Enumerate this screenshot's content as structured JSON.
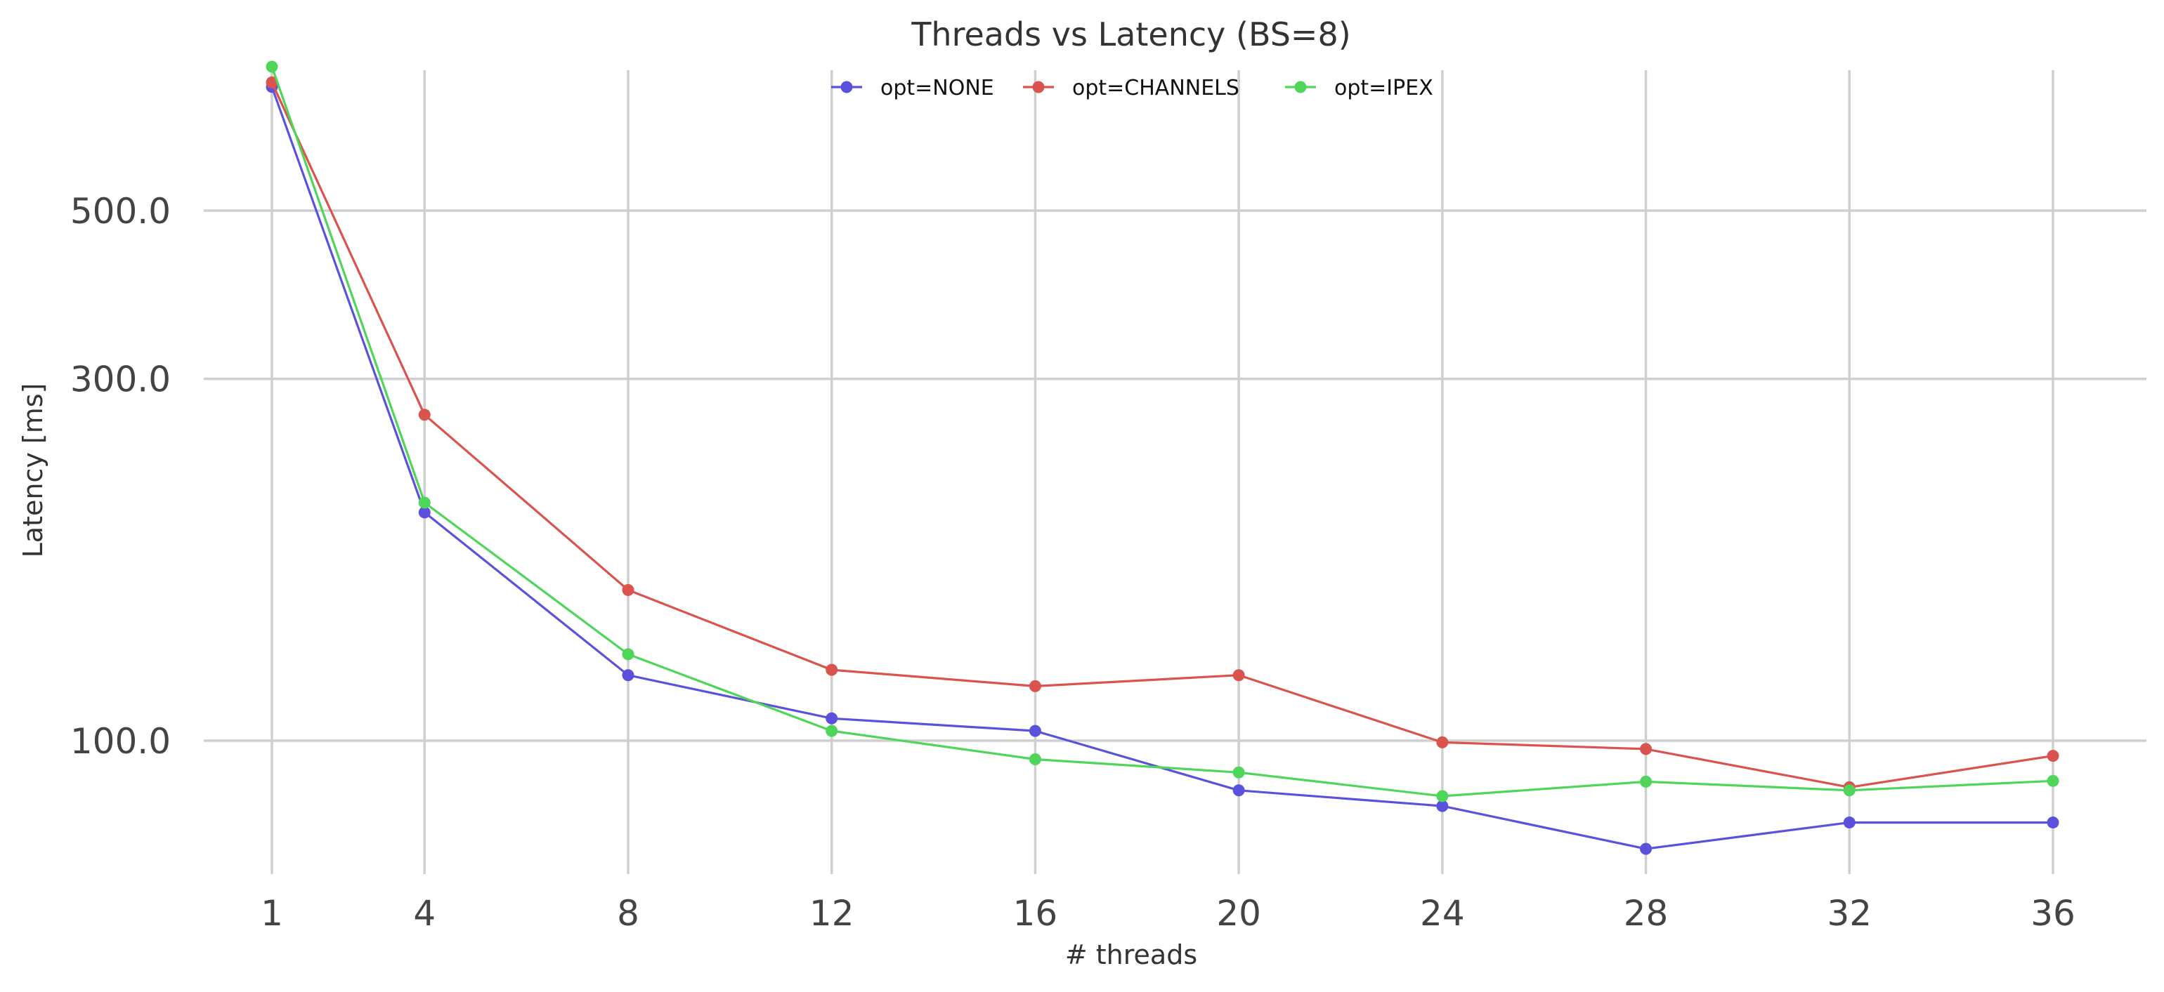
{
  "chart_data": {
    "type": "line",
    "title": "Threads vs Latency (BS=8)",
    "xlabel": "# threads",
    "ylabel": "Latency [ms]",
    "x": [
      1,
      4,
      8,
      12,
      16,
      20,
      24,
      28,
      32,
      36
    ],
    "x_ticks": [
      "1",
      "4",
      "8",
      "12",
      "16",
      "20",
      "24",
      28,
      32,
      36
    ],
    "y_scale": "log",
    "y_ticks": [
      500.0,
      300.0,
      100.0
    ],
    "y_tick_labels": [
      "500.0",
      "300.0",
      "100.0"
    ],
    "ylim": [
      66,
      830
    ],
    "grid": true,
    "legend_position": "top-center",
    "series": [
      {
        "name": "opt=NONE",
        "color": "#5a52db",
        "values": [
          728,
          200,
          122,
          107,
          103,
          86,
          82,
          72,
          78,
          78
        ]
      },
      {
        "name": "opt=CHANNELS",
        "color": "#d9534f",
        "values": [
          738,
          269,
          158,
          124,
          118,
          122,
          99.5,
          97.5,
          86.8,
          95.5
        ]
      },
      {
        "name": "opt=IPEX",
        "color": "#4fd65a",
        "values": [
          774,
          206,
          130,
          103,
          94.5,
          90.8,
          84.5,
          88.3,
          86,
          88.5
        ]
      }
    ]
  }
}
